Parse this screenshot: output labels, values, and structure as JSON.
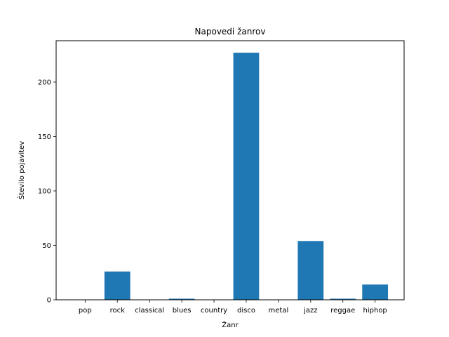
{
  "chart_data": {
    "type": "bar",
    "title": "Napovedi žanrov",
    "xlabel": "Žanr",
    "ylabel": "Število pojavitev",
    "categories": [
      "pop",
      "rock",
      "classical",
      "blues",
      "country",
      "disco",
      "metal",
      "jazz",
      "reggae",
      "hiphop"
    ],
    "values": [
      0,
      26,
      0,
      1,
      0,
      227,
      0,
      54,
      1,
      14
    ],
    "ylim": [
      0,
      238
    ],
    "yticks": [
      0,
      50,
      100,
      150,
      200
    ],
    "grid": false,
    "legend": "none",
    "bar_color": "#1f77b4"
  }
}
